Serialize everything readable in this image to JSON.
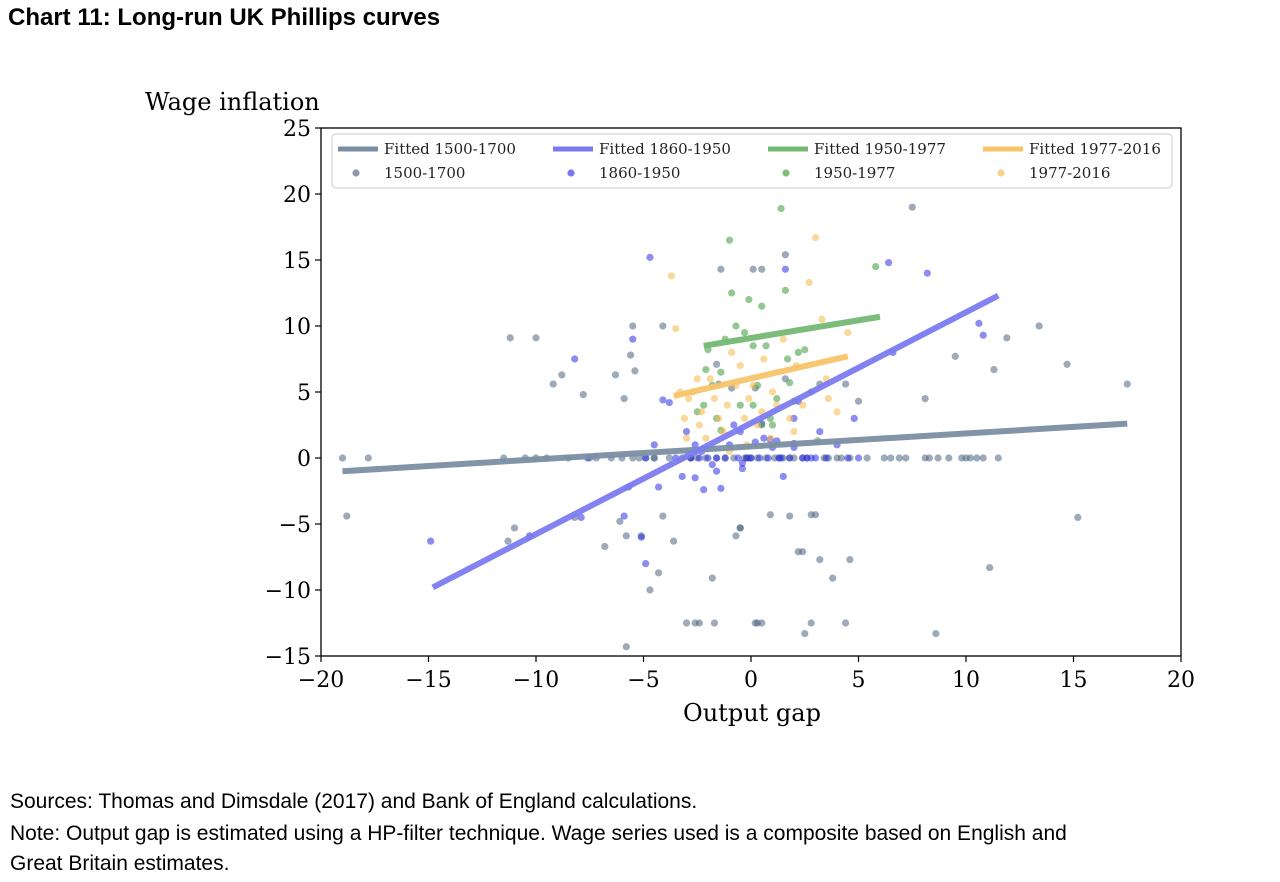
{
  "page": {
    "title": "Chart 11:  Long-run UK Phillips curves",
    "sources": "Sources:  Thomas and Dimsdale (2017) and Bank of England calculations.",
    "note_line1": "Note:  Output gap is estimated using a HP-filter technique.  Wage series used is a composite based on English and",
    "note_line2": "Great Britain estimates."
  },
  "chart_data": {
    "type": "scatter",
    "xlabel": "Output gap",
    "ylabel": "Wage inflation",
    "xlim": [
      -20,
      20
    ],
    "ylim": [
      -15,
      25
    ],
    "xticks": [
      -20,
      -15,
      -10,
      -5,
      0,
      5,
      10,
      15,
      20
    ],
    "yticks": [
      -15,
      -10,
      -5,
      0,
      5,
      10,
      15,
      20,
      25
    ],
    "xtick_labels": [
      "−20",
      "−15",
      "−10",
      "−5",
      "0",
      "5",
      "10",
      "15",
      "20"
    ],
    "ytick_labels": [
      "−15",
      "−10",
      "−5",
      "0",
      "5",
      "10",
      "15",
      "20",
      "25"
    ],
    "grid": false,
    "legend": "top",
    "fitted_lines": [
      {
        "name": "Fitted 1500-1700",
        "color": "#7a8ea3",
        "x": [
          -19.0,
          17.5
        ],
        "y": [
          -1.0,
          2.6
        ]
      },
      {
        "name": "Fitted 1860-1950",
        "color": "#7b7bf0",
        "x": [
          -14.8,
          11.5
        ],
        "y": [
          -9.8,
          12.3
        ]
      },
      {
        "name": "Fitted 1950-1977",
        "color": "#74b874",
        "x": [
          -2.2,
          6.0
        ],
        "y": [
          8.5,
          10.7
        ]
      },
      {
        "name": "Fitted 1977-2016",
        "color": "#f7c46a",
        "x": [
          -3.6,
          4.5
        ],
        "y": [
          4.7,
          7.7
        ]
      }
    ],
    "series": [
      {
        "name": "1500-1700",
        "color": "#4a6480",
        "x": [
          -19,
          -18.8,
          -17.8,
          -11.5,
          -11.3,
          -11.2,
          -11,
          -10.5,
          -10,
          -10,
          -9.5,
          -9.2,
          -8.8,
          -8.5,
          -8.2,
          -7.8,
          -7.5,
          -7.2,
          -6.8,
          -6.5,
          -6.3,
          -6.1,
          -5.9,
          -5.8,
          -5.6,
          -5.5,
          -5.5,
          -5.4,
          -5.2,
          -5.1,
          -4.9,
          -4.7,
          -4.5,
          -4.3,
          -4.1,
          -3.8,
          -3.6,
          -3.2,
          -2.8,
          -2.6,
          -2.4,
          -2.1,
          -1.8,
          -1.6,
          -1.4,
          -1.2,
          -0.9,
          -0.7,
          -0.5,
          -0.3,
          -0.1,
          0,
          0.1,
          0.3,
          0.5,
          0.7,
          0.9,
          1.1,
          1.3,
          1.5,
          1.6,
          1.8,
          2.0,
          2.2,
          2.4,
          2.6,
          2.8,
          3.0,
          3.2,
          3.4,
          3.6,
          3.8,
          4.0,
          4.2,
          4.4,
          4.6,
          5.0,
          5.4,
          6.2,
          6.5,
          6.9,
          7.2,
          7.5,
          8.1,
          8.3,
          8.7,
          9.2,
          9.5,
          9.8,
          10.0,
          10.2,
          10.5,
          10.8,
          11.1,
          11.5,
          11.9,
          13.4,
          14.7,
          15.2,
          17.5,
          0.5,
          2.8,
          1.8,
          -0.8,
          3.2,
          4.4,
          -1.6,
          2.4,
          -2.8,
          0.3,
          2.5,
          1.6,
          0.2,
          -5.8,
          -4.1,
          -6.0,
          4.6,
          8.1,
          8.6,
          11.3,
          -1.7,
          -0.5,
          -0.2,
          -4.5,
          -3.0,
          0.2,
          -1.5,
          -2.5
        ],
        "y": [
          0,
          -4.4,
          0,
          0,
          -6.3,
          9.1,
          -5.3,
          0,
          9.1,
          0,
          0,
          5.6,
          6.3,
          0,
          -4.5,
          4.8,
          0,
          0,
          -6.7,
          0,
          6.3,
          -4.8,
          4.5,
          -5.9,
          7.8,
          10.0,
          0,
          6.6,
          0,
          -5.9,
          0,
          -10.0,
          0,
          -8.7,
          -4.4,
          0,
          -6.3,
          0,
          0,
          -12.5,
          -12.5,
          0,
          -9.1,
          0,
          14.3,
          0,
          5.3,
          -5.9,
          -5.3,
          0,
          0,
          0,
          14.3,
          0,
          14.3,
          0,
          -4.3,
          0,
          0,
          0,
          15.4,
          0,
          0,
          -7.1,
          0,
          0,
          -4.3,
          -4.3,
          -7.7,
          0,
          0,
          -9.1,
          0,
          0,
          -12.5,
          -7.7,
          4.3,
          0,
          0,
          0,
          0,
          0,
          19.0,
          0,
          0,
          0,
          0,
          7.7,
          0,
          0,
          0,
          0,
          0,
          -8.3,
          0,
          9.1,
          10.0,
          7.1,
          -4.5,
          5.6,
          -12.5,
          -12.5,
          -4.4,
          0,
          5.6,
          5.6,
          7.1,
          -7.1,
          0,
          -12.5,
          -13.3,
          6.0,
          -12.5,
          -14.3,
          10.0,
          0,
          0,
          4.5,
          -13.3,
          6.7,
          -12.5,
          -5.3,
          0,
          0,
          -12.5,
          5.3,
          5.6,
          0
        ]
      },
      {
        "name": "1860-1950",
        "color": "#2e2ee6",
        "x": [
          -14.9,
          -10.3,
          -8.2,
          -7.9,
          -7.6,
          -5.7,
          -5.5,
          -5.1,
          -4.9,
          -4.7,
          -4.5,
          -4.3,
          -4.1,
          -3.8,
          -3.5,
          -3.2,
          -3.0,
          -2.8,
          -2.6,
          -2.4,
          -2.2,
          -2.0,
          -1.8,
          -1.6,
          -1.4,
          -1.2,
          -1.0,
          -0.8,
          -0.6,
          -0.4,
          -0.2,
          0,
          0.2,
          0.4,
          0.6,
          0.8,
          1.0,
          1.2,
          1.4,
          1.6,
          1.8,
          2.0,
          2.2,
          2.4,
          2.6,
          2.8,
          3.0,
          3.2,
          3.5,
          4.0,
          4.5,
          4.8,
          5.0,
          6.4,
          6.6,
          8.2,
          10.6,
          10.8,
          -5.9,
          -4.9,
          -2.6,
          -0.5,
          0.5,
          1.3,
          2.0,
          -1.6,
          2.0,
          -2.3,
          0.9,
          -0.4,
          1.5
        ],
        "y": [
          -6.3,
          -5.9,
          7.5,
          -4.5,
          0,
          -2.2,
          9.0,
          -6.0,
          -8.0,
          15.2,
          1.0,
          -2.2,
          4.4,
          4.2,
          0,
          -1.4,
          2.0,
          0,
          -1.5,
          0,
          -2.4,
          0,
          -0.5,
          0,
          -2.3,
          0,
          1.0,
          2.5,
          0,
          -0.8,
          0,
          0,
          1.2,
          0,
          1.5,
          0,
          0.8,
          1.3,
          0,
          14.3,
          0,
          1.1,
          4.3,
          0,
          0,
          0,
          0,
          2.0,
          0,
          1.0,
          0,
          3.0,
          0,
          14.8,
          8.0,
          14.0,
          10.2,
          9.3,
          -4.4,
          0,
          1.0,
          2.0,
          2.6,
          0,
          3.0,
          -1.0,
          0.8,
          0.5,
          1.4,
          -0.4,
          -1.4
        ]
      },
      {
        "name": "1950-1977",
        "color": "#3a9b3a",
        "x": [
          -2.5,
          -2.2,
          -2.0,
          -1.8,
          -1.6,
          -1.4,
          -1.2,
          -1.0,
          -0.9,
          -0.7,
          -0.5,
          -0.3,
          -0.1,
          0.1,
          0.3,
          0.5,
          0.7,
          0.9,
          1.2,
          1.4,
          1.6,
          1.8,
          2.0,
          2.2,
          2.5,
          2.8,
          3.1,
          5.8,
          -1.4,
          0.5,
          1.7,
          -2.1,
          0.1,
          1.0
        ],
        "y": [
          3.5,
          4.0,
          8.2,
          5.5,
          3.0,
          6.5,
          9.0,
          16.5,
          12.5,
          10.0,
          4.0,
          9.5,
          12.0,
          8.5,
          5.5,
          2.5,
          8.5,
          3.0,
          4.5,
          18.9,
          12.7,
          5.7,
          4.3,
          8.0,
          8.2,
          5.0,
          1.3,
          14.5,
          2.1,
          11.5,
          7.5,
          6.7,
          4.0,
          2.5
        ]
      },
      {
        "name": "1977-2016",
        "color": "#f5b84a",
        "x": [
          -3.7,
          -3.5,
          -3.3,
          -3.1,
          -2.9,
          -2.7,
          -2.5,
          -2.3,
          -2.1,
          -1.9,
          -1.7,
          -1.5,
          -1.3,
          -1.1,
          -0.9,
          -0.7,
          -0.5,
          -0.3,
          -0.1,
          0.1,
          0.3,
          0.6,
          0.9,
          1.2,
          1.5,
          1.8,
          2.1,
          2.4,
          2.7,
          3.0,
          3.3,
          3.6,
          4.0,
          4.5,
          -3.0,
          -1.0,
          0.5,
          1.0,
          2.0,
          3.5,
          -2.4,
          -0.2
        ],
        "y": [
          13.8,
          9.8,
          5.0,
          3.0,
          4.5,
          5.0,
          6.0,
          3.5,
          1.5,
          6.0,
          4.5,
          3.0,
          2.0,
          4.0,
          8.0,
          5.5,
          7.0,
          3.0,
          4.5,
          5.5,
          2.5,
          7.5,
          1.5,
          4.0,
          9.0,
          3.0,
          7.0,
          4.0,
          13.3,
          16.7,
          10.5,
          4.5,
          3.5,
          9.5,
          1.5,
          0.5,
          3.5,
          5.0,
          2.0,
          6.0,
          2.5,
          1.0
        ]
      }
    ]
  }
}
